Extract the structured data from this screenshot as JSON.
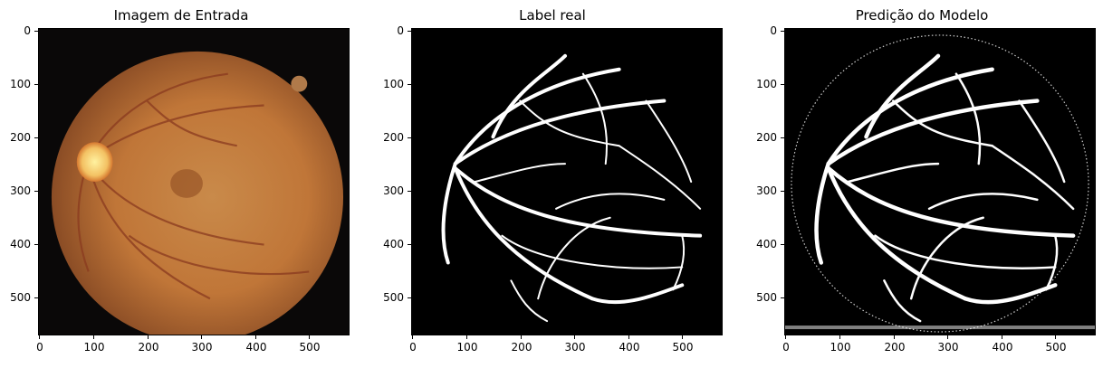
{
  "panels": [
    {
      "title": "Imagem de Entrada"
    },
    {
      "title": "Label real"
    },
    {
      "title": "Predição do Modelo"
    }
  ],
  "y_ticks": [
    "0",
    "100",
    "200",
    "300",
    "400",
    "500"
  ],
  "x_ticks": [
    "0",
    "100",
    "200",
    "300",
    "400",
    "500"
  ],
  "colors": {
    "fundus": "#c47a3e",
    "fundus_edge": "#8a4a22",
    "vessel": "#ffffff",
    "background": "#000000"
  }
}
